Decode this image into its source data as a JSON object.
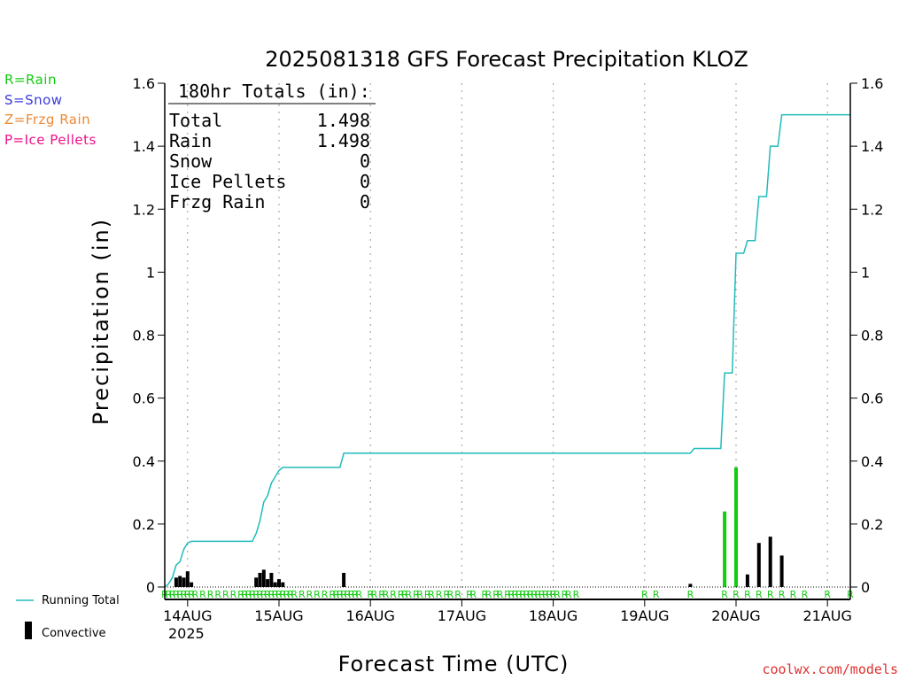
{
  "colors": {
    "rain": "#11cc11",
    "snow": "#3b3bdd",
    "frzg_rain": "#ee8833",
    "ice_pellets": "#ee1188",
    "running_total": "#22bbbb",
    "convective": "#000000",
    "grid": "#999999"
  },
  "precip_type_legend": [
    "R=Rain",
    "S=Snow",
    "Z=Frzg Rain",
    "P=Ice Pellets"
  ],
  "totals_box": {
    "heading": "180hr Totals (in):",
    "rows": [
      {
        "label": "Total",
        "value": "1.498"
      },
      {
        "label": "Rain",
        "value": "1.498"
      },
      {
        "label": "Snow",
        "value": "0"
      },
      {
        "label": "Ice Pellets",
        "value": "0"
      },
      {
        "label": "Frzg Rain",
        "value": "0"
      }
    ]
  },
  "series_legend": {
    "running_total": "Running Total",
    "convective": "Convective"
  },
  "credit": "coolwx.com/models",
  "chart_data": {
    "type": "bar",
    "title": "2025081318 GFS Forecast Precipitation KLOZ",
    "xlabel": "Forecast Time (UTC)",
    "ylabel": "Precipitation (in)",
    "x_unit": "forecast hour",
    "xlim": [
      0,
      180
    ],
    "ylim": [
      0,
      1.6
    ],
    "y_ticks": [
      0,
      0.2,
      0.4,
      0.6,
      0.8,
      1,
      1.2,
      1.4,
      1.6
    ],
    "y_tick_labels": [
      "0",
      "0.2",
      "0.4",
      "0.6",
      "0.8",
      "1",
      "1.2",
      "1.4",
      "1.6"
    ],
    "x_ticks": [
      6,
      30,
      54,
      78,
      102,
      126,
      150,
      174
    ],
    "x_tick_labels": [
      "14AUG",
      "15AUG",
      "16AUG",
      "17AUG",
      "18AUG",
      "19AUG",
      "20AUG",
      "21AUG"
    ],
    "x_sublabel": "2025",
    "grid": true,
    "series": [
      {
        "name": "Convective",
        "type": "bar",
        "points": [
          [
            3,
            0.03
          ],
          [
            4,
            0.035
          ],
          [
            5,
            0.03
          ],
          [
            6,
            0.05
          ],
          [
            7,
            0.015
          ],
          [
            24,
            0.03
          ],
          [
            25,
            0.045
          ],
          [
            26,
            0.055
          ],
          [
            27,
            0.025
          ],
          [
            28,
            0.045
          ],
          [
            29,
            0.015
          ],
          [
            30,
            0.025
          ],
          [
            31,
            0.015
          ],
          [
            47,
            0.045
          ],
          [
            138,
            0.01
          ],
          [
            153,
            0.04
          ],
          [
            156,
            0.14
          ],
          [
            159,
            0.16
          ],
          [
            162,
            0.1
          ]
        ]
      },
      {
        "name": "Rain",
        "type": "bar",
        "points": [
          [
            147,
            0.24
          ],
          [
            150,
            0.38
          ]
        ]
      },
      {
        "name": "Running Total",
        "type": "line",
        "points": [
          [
            0,
            0
          ],
          [
            1,
            0.01
          ],
          [
            2,
            0.03
          ],
          [
            3,
            0.07
          ],
          [
            4,
            0.08
          ],
          [
            5,
            0.12
          ],
          [
            6,
            0.14
          ],
          [
            7,
            0.145
          ],
          [
            23,
            0.145
          ],
          [
            24,
            0.17
          ],
          [
            25,
            0.21
          ],
          [
            26,
            0.27
          ],
          [
            27,
            0.29
          ],
          [
            28,
            0.33
          ],
          [
            29,
            0.35
          ],
          [
            30,
            0.37
          ],
          [
            31,
            0.38
          ],
          [
            46,
            0.38
          ],
          [
            47,
            0.425
          ],
          [
            138,
            0.425
          ],
          [
            139,
            0.44
          ],
          [
            146,
            0.44
          ],
          [
            147,
            0.68
          ],
          [
            149,
            0.68
          ],
          [
            150,
            1.06
          ],
          [
            152,
            1.06
          ],
          [
            153,
            1.1
          ],
          [
            155,
            1.1
          ],
          [
            156,
            1.24
          ],
          [
            158,
            1.24
          ],
          [
            159,
            1.4
          ],
          [
            161,
            1.4
          ],
          [
            162,
            1.5
          ],
          [
            180,
            1.5
          ]
        ]
      }
    ],
    "precip_type_markers": {
      "label": "R",
      "hours": [
        0,
        1,
        2,
        3,
        4,
        5,
        6,
        7,
        8,
        10,
        12,
        14,
        16,
        18,
        20,
        21,
        22,
        23,
        24,
        25,
        26,
        27,
        28,
        29,
        30,
        31,
        32,
        33,
        34,
        36,
        38,
        40,
        42,
        44,
        45,
        46,
        47,
        48,
        49,
        50,
        51,
        54,
        55,
        57,
        58,
        60,
        62,
        63,
        64,
        66,
        67,
        69,
        70,
        72,
        74,
        75,
        77,
        80,
        81,
        84,
        85,
        87,
        88,
        90,
        91,
        92,
        93,
        94,
        95,
        96,
        97,
        98,
        99,
        100,
        101,
        102,
        103,
        105,
        106,
        108,
        126,
        129,
        138,
        147,
        150,
        153,
        156,
        159,
        162,
        165,
        168,
        174,
        180
      ]
    }
  }
}
